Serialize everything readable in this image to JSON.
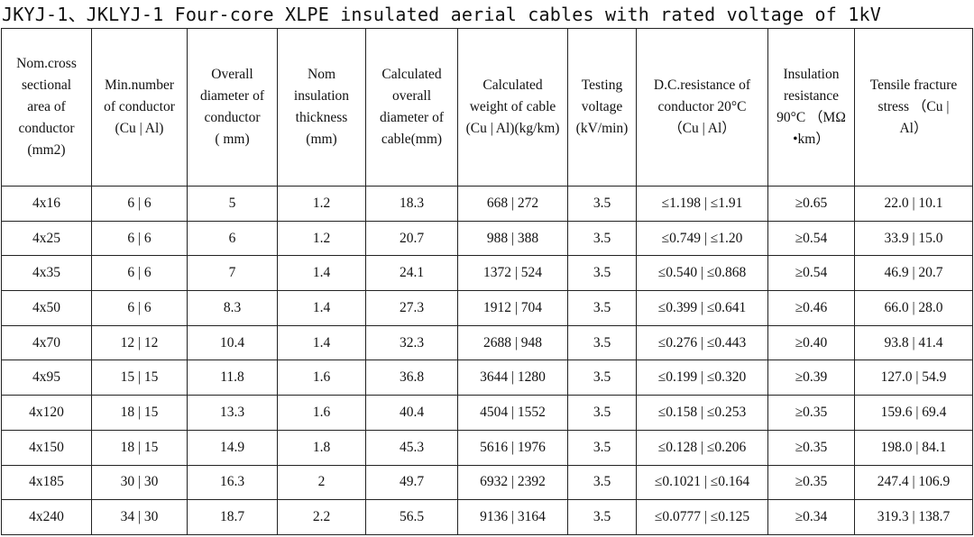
{
  "title": "JKYJ-1、JKLYJ-1 Four-core XLPE insulated aerial cables with rated voltage of 1kV",
  "headers": [
    [
      "Nom.cross",
      "sectional",
      "area of",
      "conductor",
      "(mm2)"
    ],
    [
      "Min.number",
      "of conductor",
      "(Cu | Al)"
    ],
    [
      "Overall",
      "diameter of",
      "conductor",
      "( mm)"
    ],
    [
      "Nom",
      "insulation",
      "thickness",
      "(mm)"
    ],
    [
      "Calculated",
      "overall",
      "diameter of",
      "cable(mm)"
    ],
    [
      "Calculated",
      "weight of cable",
      "(Cu | Al)(kg/km)"
    ],
    [
      "Testing",
      "voltage",
      "(kV/min)"
    ],
    [
      "D.C.resistance of",
      "conductor 20°C",
      "（Cu | Al）"
    ],
    [
      "Insulation",
      "resistance",
      "90°C （MΩ",
      "•km）"
    ],
    [
      "Tensile fracture",
      "stress （Cu |",
      "Al）"
    ]
  ],
  "rows": [
    [
      "4x16",
      "6 | 6",
      "5",
      "1.2",
      "18.3",
      "668 | 272",
      "3.5",
      "≤1.198 | ≤1.91",
      "≥0.65",
      "22.0 | 10.1"
    ],
    [
      "4x25",
      "6 | 6",
      "6",
      "1.2",
      "20.7",
      "988 | 388",
      "3.5",
      "≤0.749 | ≤1.20",
      "≥0.54",
      "33.9 | 15.0"
    ],
    [
      "4x35",
      "6 | 6",
      "7",
      "1.4",
      "24.1",
      "1372 | 524",
      "3.5",
      "≤0.540 | ≤0.868",
      "≥0.54",
      "46.9 | 20.7"
    ],
    [
      "4x50",
      "6 | 6",
      "8.3",
      "1.4",
      "27.3",
      "1912 | 704",
      "3.5",
      "≤0.399 | ≤0.641",
      "≥0.46",
      "66.0 | 28.0"
    ],
    [
      "4x70",
      "12 | 12",
      "10.4",
      "1.4",
      "32.3",
      "2688 | 948",
      "3.5",
      "≤0.276 | ≤0.443",
      "≥0.40",
      "93.8 | 41.4"
    ],
    [
      "4x95",
      "15 | 15",
      "11.8",
      "1.6",
      "36.8",
      "3644 | 1280",
      "3.5",
      "≤0.199 | ≤0.320",
      "≥0.39",
      "127.0 | 54.9"
    ],
    [
      "4x120",
      "18 | 15",
      "13.3",
      "1.6",
      "40.4",
      "4504 | 1552",
      "3.5",
      "≤0.158 | ≤0.253",
      "≥0.35",
      "159.6 | 69.4"
    ],
    [
      "4x150",
      "18 | 15",
      "14.9",
      "1.8",
      "45.3",
      "5616 | 1976",
      "3.5",
      "≤0.128 | ≤0.206",
      "≥0.35",
      "198.0 | 84.1"
    ],
    [
      "4x185",
      "30 | 30",
      "16.3",
      "2",
      "49.7",
      "6932 | 2392",
      "3.5",
      "≤0.1021 | ≤0.164",
      "≥0.35",
      "247.4 | 106.9"
    ],
    [
      "4x240",
      "34 | 30",
      "18.7",
      "2.2",
      "56.5",
      "9136 | 3164",
      "3.5",
      "≤0.0777 | ≤0.125",
      "≥0.34",
      "319.3 | 138.7"
    ]
  ]
}
